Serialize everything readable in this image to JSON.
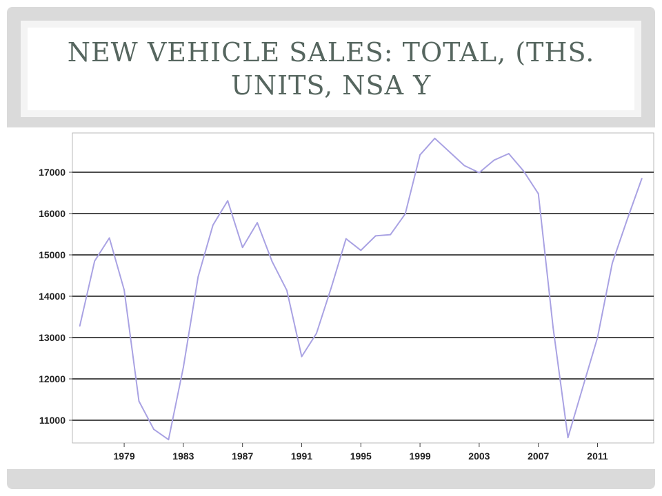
{
  "slide": {
    "title": "NEW VEHICLE SALES: TOTAL, (THS. UNITS, NSA Y"
  },
  "chart_data": {
    "type": "line",
    "title": "NEW VEHICLE SALES: TOTAL, (THS. UNITS, NSA Y",
    "xlabel": "",
    "ylabel": "",
    "x": [
      1976,
      1977,
      1978,
      1979,
      1980,
      1981,
      1982,
      1983,
      1984,
      1985,
      1986,
      1987,
      1988,
      1989,
      1990,
      1991,
      1992,
      1993,
      1994,
      1995,
      1996,
      1997,
      1998,
      1999,
      2000,
      2001,
      2002,
      2003,
      2004,
      2005,
      2006,
      2007,
      2008,
      2009,
      2010,
      2011,
      2012,
      2013,
      2014
    ],
    "series": [
      {
        "color": "#a9a2e3",
        "values": [
          13280,
          14850,
          15410,
          14150,
          11460,
          10780,
          10530,
          12280,
          14470,
          15720,
          16310,
          15180,
          15780,
          14840,
          14140,
          12540,
          13100,
          14210,
          15390,
          15110,
          15460,
          15490,
          15990,
          17420,
          17820,
          17490,
          17160,
          16990,
          17290,
          17450,
          17030,
          16480,
          13240,
          10580,
          11790,
          13000,
          14800,
          15850,
          16850
        ]
      }
    ],
    "xlim": [
      1975.5,
      2014.8
    ],
    "ylim": [
      10450,
      17950
    ],
    "yticks": [
      11000,
      12000,
      13000,
      14000,
      15000,
      16000,
      17000
    ],
    "xticks": [
      1979,
      1983,
      1987,
      1991,
      1995,
      1999,
      2003,
      2007,
      2011
    ],
    "grid": "horizontal",
    "legend": "none"
  }
}
